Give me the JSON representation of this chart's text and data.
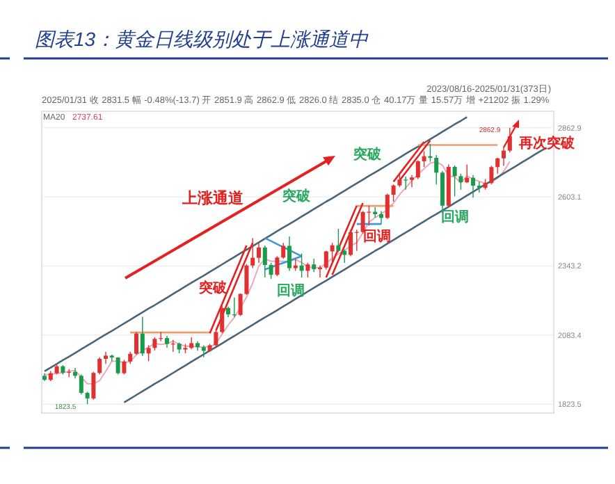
{
  "chart_data": {
    "type": "candlestick",
    "title": "图表13：黄金日线级别处于上涨通道中",
    "categories": [
      null,
      null,
      null,
      null,
      null,
      null,
      null,
      null,
      null,
      null,
      null,
      null,
      null,
      null,
      null,
      null,
      null,
      null,
      null,
      null,
      null,
      null,
      null,
      null,
      null,
      null,
      null,
      null,
      null,
      null,
      null,
      null,
      null,
      null,
      null,
      null,
      null,
      null,
      null,
      null,
      null,
      null,
      null,
      null,
      null,
      null,
      null,
      null,
      null,
      null,
      null,
      null,
      null,
      null,
      null,
      null,
      null,
      null,
      null,
      null,
      null,
      null,
      null,
      null,
      null,
      null,
      null,
      null,
      null,
      null,
      null,
      null,
      null,
      null,
      null,
      null,
      null,
      null,
      null,
      null,
      null,
      null,
      null
    ],
    "ohlc": [
      [
        1930,
        1940,
        1910,
        1915
      ],
      [
        1915,
        1948,
        1910,
        1940
      ],
      [
        1940,
        1975,
        1935,
        1966
      ],
      [
        1966,
        1970,
        1935,
        1942
      ],
      [
        1942,
        1955,
        1925,
        1945
      ],
      [
        1945,
        1960,
        1920,
        1930
      ],
      [
        1930,
        1935,
        1860,
        1866
      ],
      [
        1866,
        1870,
        1823.5,
        1845
      ],
      [
        1845,
        1945,
        1840,
        1941
      ],
      [
        1941,
        2000,
        1935,
        1994
      ],
      [
        1994,
        2020,
        1975,
        2006
      ],
      [
        2006,
        2010,
        1985,
        1999
      ],
      [
        1999,
        2000,
        1935,
        1940
      ],
      [
        1940,
        1990,
        1935,
        1984
      ],
      [
        1984,
        2020,
        1975,
        2013
      ],
      [
        2013,
        2095,
        2010,
        2089
      ],
      [
        2089,
        2152,
        2005,
        2014
      ],
      [
        2014,
        2045,
        1985,
        2035
      ],
      [
        2035,
        2075,
        2025,
        2069
      ],
      [
        2069,
        2095,
        2060,
        2072
      ],
      [
        2072,
        2080,
        2035,
        2050
      ],
      [
        2050,
        2065,
        2020,
        2051
      ],
      [
        2051,
        2055,
        2015,
        2029
      ],
      [
        2029,
        2050,
        2015,
        2035
      ],
      [
        2035,
        2075,
        2030,
        2053
      ],
      [
        2053,
        2060,
        2025,
        2038
      ],
      [
        2038,
        2045,
        2000,
        2024
      ],
      [
        2024,
        2050,
        2020,
        2045
      ],
      [
        2045,
        2100,
        2040,
        2095
      ],
      [
        2095,
        2195,
        2090,
        2185
      ],
      [
        2185,
        2190,
        2150,
        2161
      ],
      [
        2161,
        2225,
        2150,
        2159
      ],
      [
        2159,
        2240,
        2155,
        2238
      ],
      [
        2238,
        2350,
        2235,
        2345
      ],
      [
        2345,
        2448,
        2335,
        2374
      ],
      [
        2374,
        2430,
        2355,
        2413
      ],
      [
        2413,
        2420,
        2300,
        2347
      ],
      [
        2347,
        2355,
        2295,
        2310
      ],
      [
        2310,
        2380,
        2305,
        2375
      ],
      [
        2375,
        2430,
        2370,
        2419
      ],
      [
        2419,
        2454,
        2325,
        2335
      ],
      [
        2335,
        2370,
        2325,
        2345
      ],
      [
        2345,
        2390,
        2300,
        2325
      ],
      [
        2325,
        2355,
        2300,
        2349
      ],
      [
        2349,
        2370,
        2320,
        2331
      ],
      [
        2331,
        2345,
        2300,
        2337
      ],
      [
        2337,
        2400,
        2330,
        2398
      ],
      [
        2398,
        2430,
        2360,
        2421
      ],
      [
        2421,
        2483,
        2395,
        2400
      ],
      [
        2400,
        2405,
        2355,
        2385
      ],
      [
        2385,
        2480,
        2380,
        2470
      ],
      [
        2470,
        2480,
        2400,
        2471
      ],
      [
        2471,
        2550,
        2465,
        2546
      ],
      [
        2546,
        2570,
        2495,
        2547
      ],
      [
        2547,
        2565,
        2525,
        2538
      ],
      [
        2538,
        2550,
        2500,
        2524
      ],
      [
        2524,
        2615,
        2520,
        2611
      ],
      [
        2611,
        2650,
        2585,
        2646
      ],
      [
        2646,
        2690,
        2640,
        2668
      ],
      [
        2668,
        2680,
        2630,
        2667
      ],
      [
        2667,
        2685,
        2640,
        2676
      ],
      [
        2676,
        2740,
        2670,
        2737
      ],
      [
        2737,
        2775,
        2715,
        2756
      ],
      [
        2756,
        2801.8,
        2735,
        2750
      ],
      [
        2750,
        2760,
        2650,
        2694
      ],
      [
        2694,
        2700,
        2541,
        2570
      ],
      [
        2570,
        2725,
        2565,
        2716
      ],
      [
        2716,
        2721,
        2605,
        2681
      ],
      [
        2681,
        2690,
        2630,
        2658
      ],
      [
        2658,
        2725,
        2655,
        2675
      ],
      [
        2675,
        2685,
        2600,
        2645
      ],
      [
        2645,
        2660,
        2620,
        2637
      ],
      [
        2637,
        2670,
        2630,
        2655
      ],
      [
        2655,
        2720,
        2650,
        2715
      ],
      [
        2715,
        2750,
        2690,
        2748
      ],
      [
        2748,
        2790,
        2720,
        2777
      ],
      [
        2777,
        2862.9,
        2770,
        2831.5
      ],
      null,
      null,
      null,
      null,
      null,
      null
    ],
    "colors": [
      "#1a9a4a",
      "#e03030",
      "#e03030",
      "#1a9a4a",
      "#e03030",
      "#1a9a4a",
      "#1a9a4a",
      "#1a9a4a",
      "#e03030",
      "#e03030",
      "#e03030",
      "#1a9a4a",
      "#1a9a4a",
      "#e03030",
      "#e03030",
      "#e03030",
      "#1a9a4a",
      "#e03030",
      "#e03030",
      "#e03030",
      "#1a9a4a",
      "#e03030",
      "#1a9a4a",
      "#e03030",
      "#e03030",
      "#1a9a4a",
      "#1a9a4a",
      "#e03030",
      "#e03030",
      "#e03030",
      "#1a9a4a",
      "#1a9a4a",
      "#e03030",
      "#e03030",
      "#e03030",
      "#e03030",
      "#1a9a4a",
      "#1a9a4a",
      "#e03030",
      "#e03030",
      "#1a9a4a",
      "#e03030",
      "#1a9a4a",
      "#e03030",
      "#1a9a4a",
      "#e03030",
      "#e03030",
      "#e03030",
      "#1a9a4a",
      "#1a9a4a",
      "#e03030",
      "#e03030",
      "#e03030",
      "#e03030",
      "#1a9a4a",
      "#1a9a4a",
      "#e03030",
      "#e03030",
      "#e03030",
      "#1a9a4a",
      "#e03030",
      "#e03030",
      "#e03030",
      "#1a9a4a",
      "#1a9a4a",
      "#1a9a4a",
      "#e03030",
      "#1a9a4a",
      "#1a9a4a",
      "#e03030",
      "#1a9a4a",
      "#1a9a4a",
      "#e03030",
      "#e03030",
      "#e03030",
      "#e03030",
      "#e03030",
      null,
      null,
      null,
      null,
      null,
      null
    ],
    "series": [
      {
        "name": "MA20",
        "type": "line",
        "color": "#f0a0b0",
        "values": [
          1935,
          1935,
          1940,
          1941,
          1948,
          1950,
          1925,
          1900,
          1900,
          1912,
          1947,
          1985,
          1985,
          1980,
          1984,
          2009,
          2025,
          2038,
          2052,
          2048,
          2051,
          2060,
          2050,
          2041,
          2042,
          2039,
          2038,
          2040,
          2050,
          2087,
          2121,
          2150,
          2186,
          2226,
          2279,
          2343,
          2370,
          2361,
          2361,
          2361,
          2360,
          2368,
          2356,
          2339,
          2338,
          2336,
          2354,
          2372,
          2389,
          2401,
          2419,
          2431,
          2468,
          2508,
          2525,
          2539,
          2555,
          2580,
          2612,
          2637,
          2664,
          2687,
          2709,
          2730,
          2735,
          2722,
          2682,
          2678,
          2656,
          2682,
          2670,
          2661,
          2654,
          2658,
          2673,
          2699,
          2736,
          null,
          null,
          null,
          null,
          null,
          null
        ]
      },
      {
        "type": "line",
        "color": "#4a6478",
        "values": [
          1947,
          1961,
          1975,
          1989,
          2002,
          2016,
          2030,
          2044,
          2058,
          2072,
          2086,
          2099,
          2113,
          2127,
          2141,
          2155,
          2169,
          2183,
          2196,
          2210,
          2224,
          2238,
          2252,
          2266,
          2280,
          2294,
          2307,
          2321,
          2335,
          2349,
          2363,
          2377,
          2391,
          2404,
          2418,
          2432,
          2446,
          2460,
          2474,
          2488,
          2501,
          2515,
          2529,
          2543,
          2557,
          2571,
          2585,
          2598,
          2612,
          2626,
          2640,
          2654,
          2668,
          2682,
          2695,
          2709,
          2723,
          2737,
          2751,
          2765,
          2779,
          2792,
          2806,
          2820,
          2834,
          2848,
          2862,
          2876,
          2889,
          2903,
          null,
          null,
          null,
          null,
          null,
          null,
          null,
          null,
          null,
          null,
          null,
          null,
          null
        ]
      },
      {
        "type": "line",
        "color": "#4a6478",
        "values": [
          null,
          null,
          null,
          null,
          null,
          null,
          null,
          null,
          null,
          null,
          null,
          null,
          null,
          1830,
          1844,
          1858,
          1872,
          1886,
          1900,
          1913,
          1927,
          1941,
          1955,
          1969,
          1983,
          1997,
          2011,
          2025,
          2038,
          2052,
          2066,
          2080,
          2094,
          2108,
          2122,
          2136,
          2150,
          2163,
          2177,
          2191,
          2205,
          2219,
          2233,
          2247,
          2261,
          2275,
          2288,
          2302,
          2316,
          2330,
          2344,
          2358,
          2372,
          2386,
          2400,
          2413,
          2427,
          2441,
          2455,
          2469,
          2483,
          2497,
          2511,
          2525,
          2538,
          2552,
          2566,
          2580,
          2594,
          2608,
          2622,
          2636,
          2650,
          2663,
          2677,
          2691,
          2705,
          2719,
          2733,
          2747,
          2761,
          2775,
          2788
        ]
      },
      {
        "type": "line",
        "color": "#e8a070",
        "values": [
          null,
          null,
          null,
          null,
          null,
          null,
          null,
          null,
          null,
          null,
          null,
          null,
          null,
          null,
          2093,
          2093,
          2093,
          2093,
          2093,
          2093,
          2093,
          2093,
          2093,
          2093,
          2093,
          2093,
          2093,
          2093,
          null,
          null,
          null,
          null,
          null,
          null,
          null,
          null,
          null,
          null,
          null,
          null,
          null,
          null,
          null,
          null,
          null,
          null,
          null,
          null,
          null,
          null,
          null,
          null,
          null,
          null,
          null,
          null,
          null,
          null,
          null,
          null,
          null,
          null,
          null,
          null,
          null,
          null,
          null,
          null,
          null,
          null,
          null,
          null,
          null,
          null,
          null,
          null,
          null,
          null,
          null,
          null,
          null,
          null,
          null
        ]
      },
      {
        "type": "line",
        "color": "#e8a070",
        "values": [
          null,
          null,
          null,
          null,
          null,
          null,
          null,
          null,
          null,
          null,
          null,
          null,
          null,
          null,
          null,
          null,
          null,
          null,
          null,
          null,
          null,
          null,
          null,
          null,
          null,
          null,
          null,
          null,
          null,
          null,
          null,
          null,
          null,
          null,
          null,
          null,
          null,
          null,
          null,
          null,
          null,
          null,
          null,
          null,
          null,
          null,
          null,
          null,
          null,
          null,
          null,
          2569,
          2569,
          2569,
          2569,
          2569,
          2569,
          2569,
          null,
          null,
          null,
          null,
          null,
          null,
          null,
          null,
          null,
          null,
          null,
          null,
          null,
          null,
          null,
          null,
          null,
          null,
          null,
          null,
          null,
          null,
          null,
          null,
          null
        ]
      },
      {
        "type": "line",
        "color": "#e8a070",
        "values": [
          null,
          null,
          null,
          null,
          null,
          null,
          null,
          null,
          null,
          null,
          null,
          null,
          null,
          null,
          null,
          null,
          null,
          null,
          null,
          null,
          null,
          null,
          null,
          null,
          null,
          null,
          null,
          null,
          null,
          null,
          null,
          null,
          null,
          null,
          null,
          null,
          null,
          null,
          null,
          null,
          null,
          null,
          null,
          null,
          null,
          null,
          null,
          null,
          null,
          null,
          null,
          null,
          null,
          null,
          null,
          null,
          null,
          null,
          null,
          null,
          null,
          2798,
          2798,
          2798,
          2798,
          2798,
          2798,
          2798,
          2798,
          2798,
          2798,
          2798,
          2798,
          2798,
          2798,
          null,
          null,
          null,
          null,
          null,
          null,
          null,
          null
        ]
      },
      {
        "type": "line",
        "color": "#e52020",
        "values": [
          null,
          null,
          null,
          null,
          null,
          null,
          null,
          null,
          null,
          null,
          null,
          null,
          null,
          null,
          null,
          null,
          null,
          null,
          null,
          null,
          null,
          null,
          null,
          null,
          null,
          null,
          null,
          2090,
          2145,
          2200,
          2255,
          2310,
          2365,
          2420,
          null,
          null,
          null,
          null,
          null,
          null,
          null,
          null,
          null,
          null,
          null,
          null,
          null,
          null,
          null,
          null,
          null,
          null,
          null,
          null,
          null,
          null,
          null,
          null,
          null,
          null,
          null,
          null,
          null,
          null,
          null,
          null,
          null,
          null,
          null,
          null,
          null,
          null,
          null,
          null,
          null,
          null,
          null,
          null,
          null,
          null,
          null,
          null,
          null
        ]
      },
      {
        "type": "line",
        "color": "#e52020",
        "values": [
          null,
          null,
          null,
          null,
          null,
          null,
          null,
          null,
          null,
          null,
          null,
          null,
          null,
          null,
          null,
          null,
          null,
          null,
          null,
          null,
          null,
          null,
          null,
          null,
          null,
          null,
          null,
          null,
          2100,
          2155,
          2210,
          2265,
          2320,
          2375,
          2430,
          null,
          null,
          null,
          null,
          null,
          null,
          null,
          null,
          null,
          null,
          null,
          null,
          null,
          null,
          null,
          null,
          null,
          null,
          null,
          null,
          null,
          null,
          null,
          null,
          null,
          null,
          null,
          null,
          null,
          null,
          null,
          null,
          null,
          null,
          null,
          null,
          null,
          null,
          null,
          null,
          null,
          null,
          null,
          null,
          null,
          null,
          null,
          null
        ]
      },
      {
        "type": "line",
        "color": "#e52020",
        "values": [
          null,
          null,
          null,
          null,
          null,
          null,
          null,
          null,
          null,
          null,
          null,
          null,
          null,
          null,
          null,
          null,
          null,
          null,
          null,
          null,
          null,
          null,
          null,
          null,
          null,
          null,
          null,
          null,
          null,
          null,
          null,
          null,
          null,
          null,
          null,
          null,
          null,
          null,
          null,
          null,
          null,
          null,
          null,
          null,
          null,
          null,
          2300,
          2354,
          2408,
          2462,
          2516,
          2570,
          null,
          null,
          null,
          null,
          null,
          null,
          null,
          null,
          null,
          null,
          null,
          null,
          null,
          null,
          null,
          null,
          null,
          null,
          null,
          null,
          null,
          null,
          null,
          null,
          null,
          null,
          null,
          null,
          null,
          null,
          null
        ]
      },
      {
        "type": "line",
        "color": "#e52020",
        "values": [
          null,
          null,
          null,
          null,
          null,
          null,
          null,
          null,
          null,
          null,
          null,
          null,
          null,
          null,
          null,
          null,
          null,
          null,
          null,
          null,
          null,
          null,
          null,
          null,
          null,
          null,
          null,
          null,
          null,
          null,
          null,
          null,
          null,
          null,
          null,
          null,
          null,
          null,
          null,
          null,
          null,
          null,
          null,
          null,
          null,
          null,
          null,
          2310,
          2364,
          2418,
          2472,
          2526,
          2580,
          null,
          null,
          null,
          null,
          null,
          null,
          null,
          null,
          null,
          null,
          null,
          null,
          null,
          null,
          null,
          null,
          null,
          null,
          null,
          null,
          null,
          null,
          null,
          null,
          null,
          null,
          null,
          null,
          null,
          null
        ]
      },
      {
        "type": "line",
        "color": "#e52020",
        "values": [
          null,
          null,
          null,
          null,
          null,
          null,
          null,
          null,
          null,
          null,
          null,
          null,
          null,
          null,
          null,
          null,
          null,
          null,
          null,
          null,
          null,
          null,
          null,
          null,
          null,
          null,
          null,
          null,
          null,
          null,
          null,
          null,
          null,
          null,
          null,
          null,
          null,
          null,
          null,
          null,
          null,
          null,
          null,
          null,
          null,
          null,
          null,
          null,
          null,
          null,
          null,
          null,
          null,
          null,
          null,
          null,
          null,
          2660,
          2690,
          2720,
          2750,
          2780,
          2810,
          null,
          null,
          null,
          null,
          null,
          null,
          null,
          null,
          null,
          null,
          null,
          null,
          null,
          null,
          null,
          null,
          null,
          null,
          null,
          null
        ]
      },
      {
        "type": "line",
        "color": "#e52020",
        "values": [
          null,
          null,
          null,
          null,
          null,
          null,
          null,
          null,
          null,
          null,
          null,
          null,
          null,
          null,
          null,
          null,
          null,
          null,
          null,
          null,
          null,
          null,
          null,
          null,
          null,
          null,
          null,
          null,
          null,
          null,
          null,
          null,
          null,
          null,
          null,
          null,
          null,
          null,
          null,
          null,
          null,
          null,
          null,
          null,
          null,
          null,
          null,
          null,
          null,
          null,
          null,
          null,
          null,
          null,
          null,
          null,
          null,
          null,
          2665,
          2695,
          2725,
          2755,
          2785,
          2815,
          null,
          null,
          null,
          null,
          null,
          null,
          null,
          null,
          null,
          null,
          null,
          null,
          null,
          null,
          null,
          null,
          null,
          null,
          null
        ]
      },
      {
        "type": "line",
        "color": "#3a9ad9",
        "values": [
          null,
          null,
          null,
          null,
          null,
          null,
          null,
          null,
          null,
          null,
          null,
          null,
          null,
          null,
          null,
          null,
          null,
          null,
          null,
          null,
          null,
          null,
          null,
          null,
          null,
          null,
          null,
          null,
          null,
          null,
          null,
          null,
          null,
          null,
          null,
          null,
          2448,
          2437,
          2425,
          2414,
          2403,
          2391,
          2380,
          null,
          null,
          null,
          null,
          null,
          null,
          null,
          null,
          null,
          null,
          null,
          null,
          null,
          null,
          null,
          null,
          null,
          null,
          null,
          null,
          null,
          null,
          null,
          null,
          null,
          null,
          null,
          null,
          null,
          null,
          null,
          null,
          null,
          null,
          null,
          null,
          null,
          null,
          null,
          null
        ]
      },
      {
        "type": "line",
        "color": "#3a9ad9",
        "values": [
          null,
          null,
          null,
          null,
          null,
          null,
          null,
          null,
          null,
          null,
          null,
          null,
          null,
          null,
          null,
          null,
          null,
          null,
          null,
          null,
          null,
          null,
          null,
          null,
          null,
          null,
          null,
          null,
          null,
          null,
          null,
          null,
          null,
          null,
          null,
          null,
          2330,
          2338,
          2347,
          2355,
          2363,
          2372,
          2380,
          null,
          null,
          null,
          null,
          null,
          null,
          null,
          null,
          null,
          null,
          null,
          null,
          null,
          null,
          null,
          null,
          null,
          null,
          null,
          null,
          null,
          null,
          null,
          null,
          null,
          null,
          null,
          null,
          null,
          null,
          null,
          null,
          null,
          null,
          null,
          null,
          null,
          null,
          null,
          null
        ]
      },
      {
        "type": "line",
        "color": "#3a9ad9",
        "values": [
          null,
          null,
          null,
          null,
          null,
          null,
          null,
          null,
          null,
          null,
          null,
          null,
          null,
          null,
          null,
          null,
          null,
          null,
          null,
          null,
          null,
          null,
          null,
          null,
          null,
          null,
          null,
          null,
          null,
          null,
          null,
          null,
          null,
          null,
          null,
          null,
          null,
          null,
          null,
          null,
          null,
          null,
          null,
          null,
          null,
          null,
          null,
          null,
          null,
          null,
          null,
          2501,
          2501,
          2501,
          2501,
          2501,
          null,
          null,
          null,
          null,
          null,
          null,
          null,
          null,
          null,
          null,
          null,
          null,
          null,
          null,
          null,
          null,
          null,
          null,
          null,
          null,
          null,
          null,
          null,
          null,
          null,
          null,
          null
        ]
      }
    ],
    "ylim": [
      1790,
      2925
    ],
    "yticks": [
      1823.5,
      2083.4,
      2343.2,
      2603.1,
      2862.9
    ],
    "grid": "y",
    "annotations": [
      "上涨通道",
      "突破",
      "回调",
      "突破",
      "回调",
      "突破",
      "回调",
      "再次突破",
      "1823.5",
      "2862.9",
      "2025/01/31 收 2831.5 幅 -0.48%(-13.7) 开 2851.9 高 2862.9 低 2826.0 结 2835.0 仓 40.17万 量 15.57万 增 +21202 振 1.29%",
      "2737.61",
      "2023/08/16-2025/01/31(373日)"
    ]
  }
}
